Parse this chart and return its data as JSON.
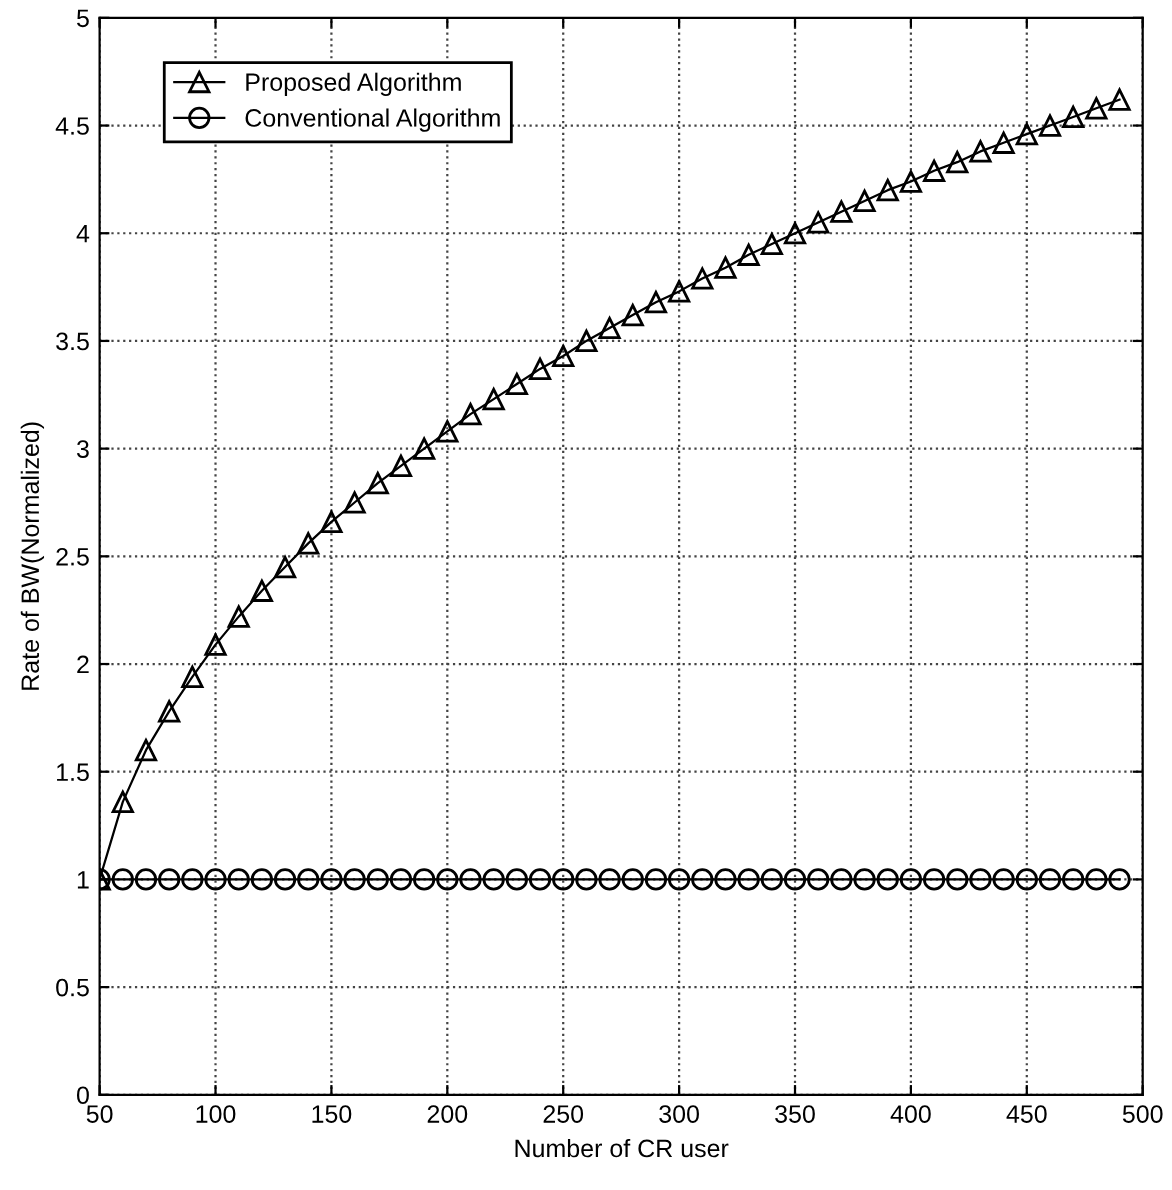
{
  "chart_data": {
    "type": "line",
    "xlabel": "Number of CR user",
    "ylabel": "Rate of BW(Normalized)",
    "x": [
      50,
      60,
      70,
      80,
      90,
      100,
      110,
      120,
      130,
      140,
      150,
      160,
      170,
      180,
      190,
      200,
      210,
      220,
      230,
      240,
      250,
      260,
      270,
      280,
      290,
      300,
      310,
      320,
      330,
      340,
      350,
      360,
      370,
      380,
      390,
      400,
      410,
      420,
      430,
      440,
      450,
      460,
      470,
      480,
      490
    ],
    "series": [
      {
        "name": "Proposed Algorithm",
        "color": "#000000",
        "marker": "triangle",
        "values": [
          1.0,
          1.36,
          1.6,
          1.78,
          1.94,
          2.09,
          2.22,
          2.34,
          2.45,
          2.56,
          2.66,
          2.75,
          2.84,
          2.92,
          3.0,
          3.08,
          3.16,
          3.23,
          3.3,
          3.37,
          3.43,
          3.5,
          3.56,
          3.62,
          3.68,
          3.73,
          3.79,
          3.84,
          3.9,
          3.95,
          4.0,
          4.05,
          4.1,
          4.15,
          4.2,
          4.24,
          4.29,
          4.33,
          4.38,
          4.42,
          4.46,
          4.5,
          4.54,
          4.58,
          4.62
        ]
      },
      {
        "name": "Conventional Algorithm",
        "color": "#000000",
        "marker": "circle",
        "values": [
          1,
          1,
          1,
          1,
          1,
          1,
          1,
          1,
          1,
          1,
          1,
          1,
          1,
          1,
          1,
          1,
          1,
          1,
          1,
          1,
          1,
          1,
          1,
          1,
          1,
          1,
          1,
          1,
          1,
          1,
          1,
          1,
          1,
          1,
          1,
          1,
          1,
          1,
          1,
          1,
          1,
          1,
          1,
          1,
          1
        ]
      }
    ],
    "xlim": [
      50,
      500
    ],
    "xticks": [
      50,
      100,
      150,
      200,
      250,
      300,
      350,
      400,
      450,
      500
    ],
    "ylim": [
      0,
      5
    ],
    "yticks": [
      0,
      0.5,
      1,
      1.5,
      2,
      2.5,
      3,
      3.5,
      4,
      4.5,
      5
    ],
    "grid": true,
    "legend": "top left",
    "line_style": "solid"
  }
}
